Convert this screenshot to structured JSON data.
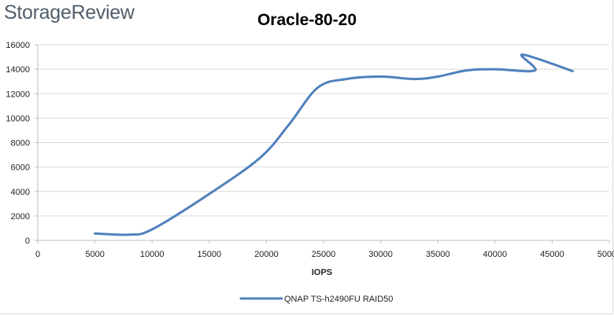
{
  "brand": "StorageReview",
  "chart_data": {
    "type": "line",
    "title": "Oracle-80-20",
    "xlabel": "IOPS",
    "ylabel": "",
    "xlim": [
      0,
      50000
    ],
    "ylim": [
      0,
      16000
    ],
    "x_ticks": [
      "0",
      "5000",
      "10000",
      "15000",
      "20000",
      "25000",
      "30000",
      "35000",
      "40000",
      "45000",
      "50000"
    ],
    "x_tick_values": [
      0,
      5000,
      10000,
      15000,
      20000,
      25000,
      30000,
      35000,
      40000,
      45000,
      50000
    ],
    "y_ticks": [
      "0",
      "2000",
      "4000",
      "6000",
      "8000",
      "10000",
      "12000",
      "14000",
      "16000"
    ],
    "y_tick_values": [
      0,
      2000,
      4000,
      6000,
      8000,
      10000,
      12000,
      14000,
      16000
    ],
    "grid": true,
    "legend_position": "bottom",
    "series": [
      {
        "name": "QNAP TS-h2490FU RAID50",
        "color": "#4f81bd",
        "points": [
          {
            "x": 5000,
            "y": 560
          },
          {
            "x": 8000,
            "y": 470
          },
          {
            "x": 10000,
            "y": 900
          },
          {
            "x": 15000,
            "y": 3800
          },
          {
            "x": 19500,
            "y": 6800
          },
          {
            "x": 22000,
            "y": 9500
          },
          {
            "x": 24500,
            "y": 12500
          },
          {
            "x": 27000,
            "y": 13200
          },
          {
            "x": 30000,
            "y": 13400
          },
          {
            "x": 33000,
            "y": 13200
          },
          {
            "x": 35000,
            "y": 13400
          },
          {
            "x": 37500,
            "y": 13900
          },
          {
            "x": 40000,
            "y": 14000
          },
          {
            "x": 43500,
            "y": 13900
          },
          {
            "x": 42400,
            "y": 15200
          },
          {
            "x": 46800,
            "y": 13850
          }
        ]
      }
    ]
  }
}
